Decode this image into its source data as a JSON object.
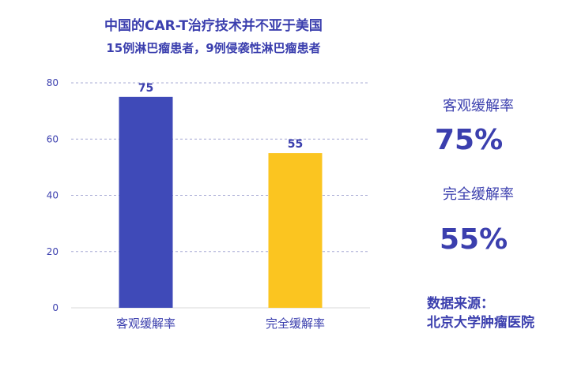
{
  "header": {
    "title": "中国的CAR-T治疗技术并不亚于美国",
    "subtitle": "15例淋巴瘤患者，9例侵袭性淋巴瘤患者"
  },
  "stats": [
    {
      "label": "客观缓解率",
      "value": "75%"
    },
    {
      "label": "完全缓解率",
      "value": "55%"
    }
  ],
  "source": {
    "line1": "数据来源：",
    "line2": "北京大学肿瘤医院"
  },
  "colors": {
    "accent": "#3b3fae",
    "bar1": "#3f4ab8",
    "bar2": "#fbc520",
    "grid": "#a9acd6"
  },
  "chart_data": {
    "type": "bar",
    "categories": [
      "客观缓解率",
      "完全缓解率"
    ],
    "values": [
      75,
      55
    ],
    "value_labels": [
      "75",
      "55"
    ],
    "colors": [
      "#3f4ab8",
      "#fbc520"
    ],
    "ylim": [
      0,
      80
    ],
    "yticks": [
      "0",
      "20",
      "40",
      "60",
      "80"
    ],
    "grid": true,
    "xlabel": "",
    "ylabel": ""
  }
}
